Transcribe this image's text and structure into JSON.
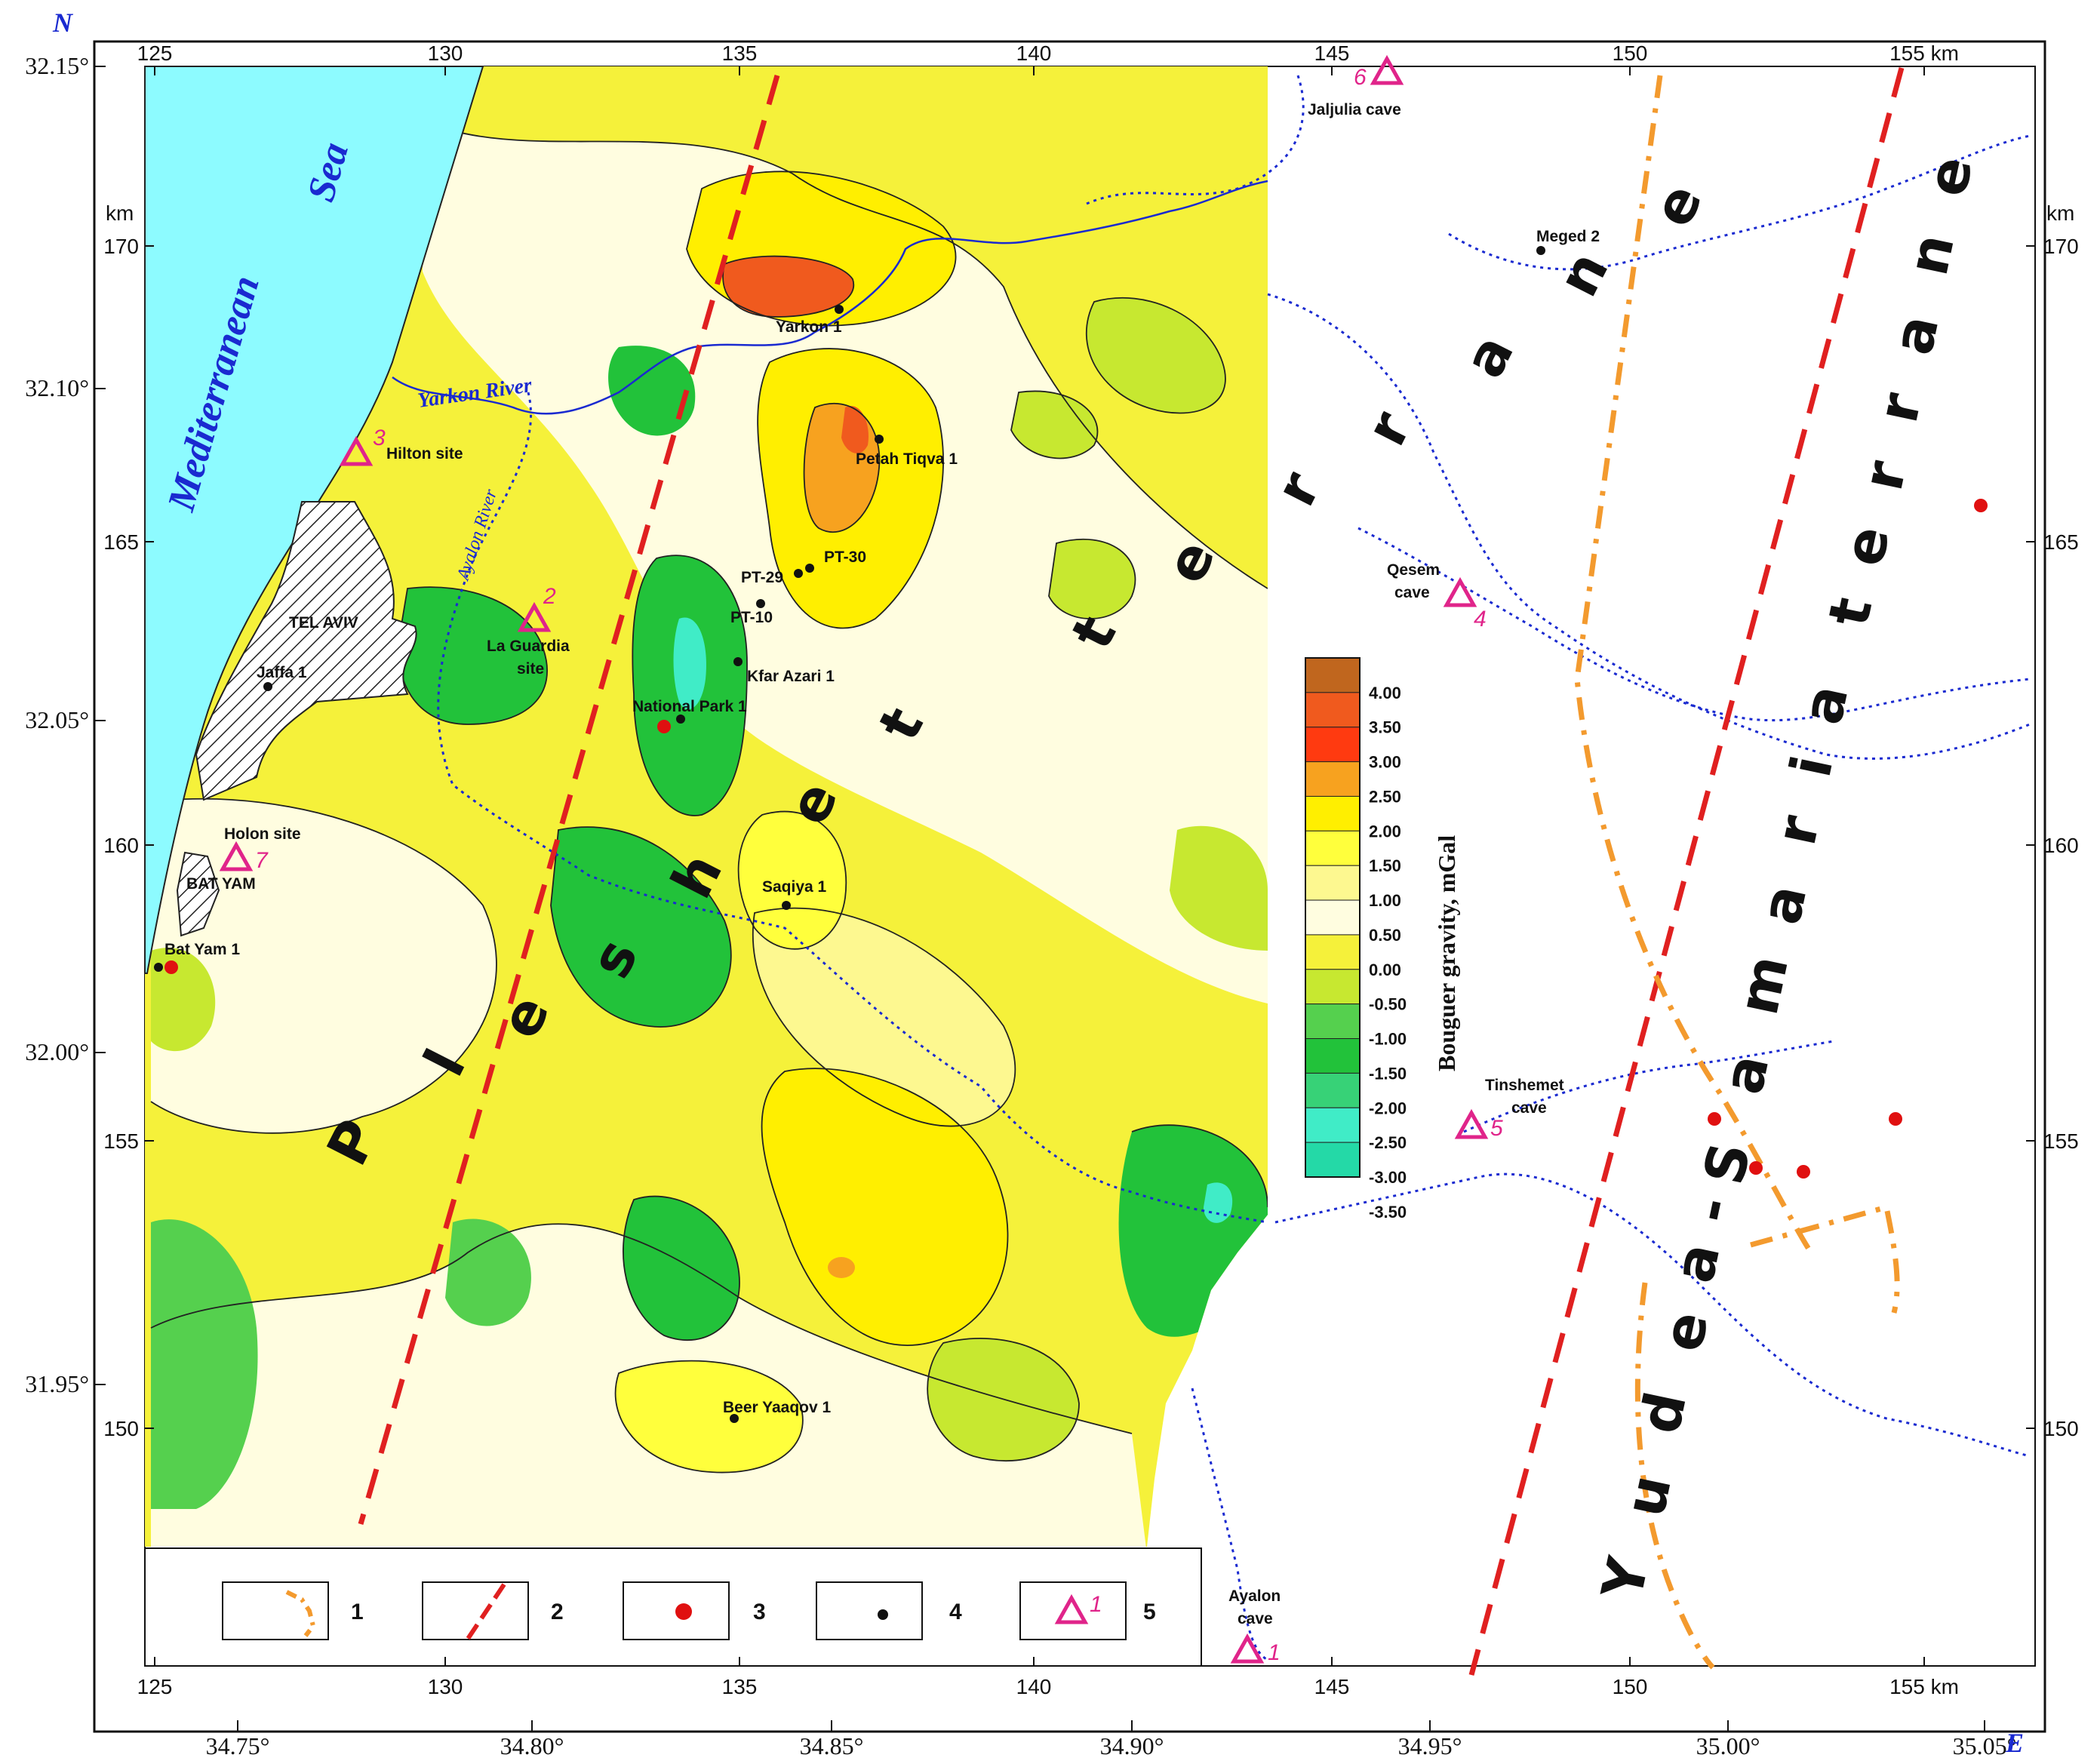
{
  "axes": {
    "north_label": "N",
    "east_label": "E",
    "km_unit": "km",
    "x_km_ticks": [
      "125",
      "130",
      "135",
      "140",
      "145",
      "150",
      "155 km"
    ],
    "y_km_ticks": [
      "170",
      "165",
      "160",
      "155",
      "150"
    ],
    "lat_ticks": [
      "32.15°",
      "32.10°",
      "32.05°",
      "32.00°",
      "31.95°"
    ],
    "lon_ticks": [
      "34.75°",
      "34.80°",
      "34.85°",
      "34.90°",
      "34.95°",
      "35.00°",
      "35.05°"
    ]
  },
  "water": {
    "sea_word1": "Mediterranean",
    "sea_word2": "Sea",
    "yarkon_river": "Yarkon River",
    "ayalon_river": "Ayalon River"
  },
  "places": {
    "tel_aviv": "TEL AVIV",
    "bat_yam": "BAT YAM",
    "jaffa_1": "Jaffa 1",
    "hilton": "Hilton site",
    "la_guardia_1": "La Guardia",
    "la_guardia_2": "site",
    "holon": "Holon site",
    "bat_yam_1": "Bat Yam 1",
    "yarkon_1": "Yarkon 1",
    "petah_tiqva_1": "Petah Tiqva 1",
    "pt29": "PT-29",
    "pt30": "PT-30",
    "pt10": "PT-10",
    "kfar_azari_1": "Kfar Azari 1",
    "national_park_1": "National Park 1",
    "saqiya_1": "Saqiya 1",
    "beer_yaaqov_1": "Beer Yaaqov 1",
    "meged_2": "Meged 2",
    "jaljulia": "Jaljulia cave",
    "qesem_1": "Qesem",
    "qesem_2": "cave",
    "tinshemet_1": "Tinshemet",
    "tinshemet_2": "cave",
    "ayalon_1": "Ayalon",
    "ayalon_2": "cave"
  },
  "sites": [
    "1",
    "2",
    "3",
    "4",
    "5",
    "6",
    "7"
  ],
  "terranes": {
    "pleshet": "Pleshet terrane",
    "yudea": "Yudea-Samaria terrane"
  },
  "colorbar": {
    "title": "Bouguer gravity, mGal",
    "levels": [
      "4.00",
      "3.50",
      "3.00",
      "2.50",
      "2.00",
      "1.50",
      "1.00",
      "0.50",
      "0.00",
      "-0.50",
      "-1.00",
      "-1.50",
      "-2.00",
      "-2.50",
      "-3.00",
      "-3.50"
    ],
    "colors": [
      "#c0661e",
      "#f05a1e",
      "#ff3a10",
      "#f7a21f",
      "#ffef00",
      "#ffff3c",
      "#fdf890",
      "#fffde0",
      "#f5f13a",
      "#c7e830",
      "#55d04e",
      "#22c23a",
      "#37d277",
      "#40ecc7",
      "#24d9a7"
    ]
  },
  "legend": {
    "items": [
      "1",
      "2",
      "3",
      "4",
      "5"
    ],
    "symbol_5_num": "1"
  },
  "colors": {
    "sea": "#8dfbff",
    "fault_red": "#e02020",
    "fault_orange": "#f39a2e",
    "river": "#1a2ad0",
    "site_magenta": "#e0248a",
    "point_red": "#e01010"
  }
}
